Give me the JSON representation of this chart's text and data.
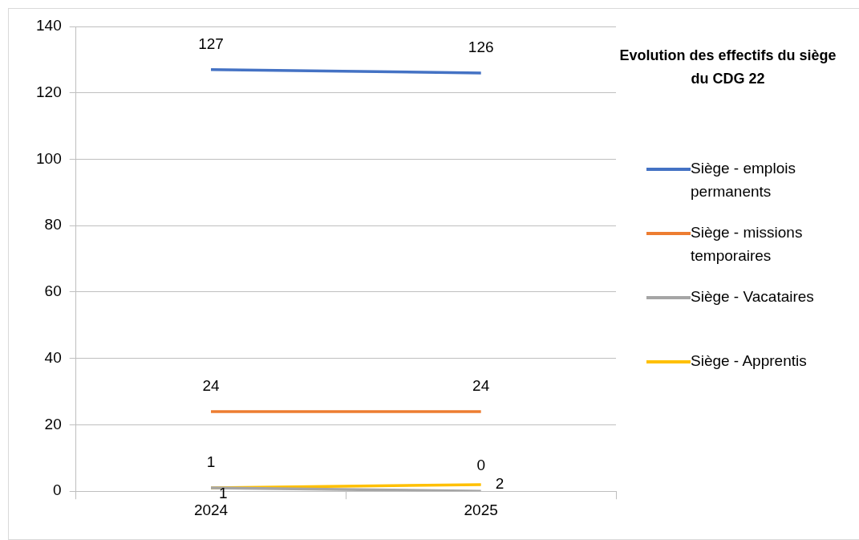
{
  "chart_data": {
    "type": "line",
    "title": "Evolution des effectifs du siège du CDG 22",
    "categories": [
      "2024",
      "2025"
    ],
    "series": [
      {
        "name": "Siège - emplois permanents",
        "color": "#4472c4",
        "values": [
          127,
          126
        ]
      },
      {
        "name": "Siège - missions temporaires",
        "color": "#ed7d31",
        "values": [
          24,
          24
        ]
      },
      {
        "name": "Siège - Vacataires",
        "color": "#a5a5a5",
        "values": [
          1,
          0
        ]
      },
      {
        "name": "Siège - Apprentis",
        "color": "#ffc000",
        "values": [
          1,
          2
        ]
      }
    ],
    "ylim": [
      0,
      140
    ],
    "yticks": [
      0,
      20,
      40,
      60,
      80,
      100,
      120,
      140
    ],
    "grid": "y",
    "legend": "right",
    "marker": "none",
    "line_style": "solid",
    "data_labels": true
  }
}
